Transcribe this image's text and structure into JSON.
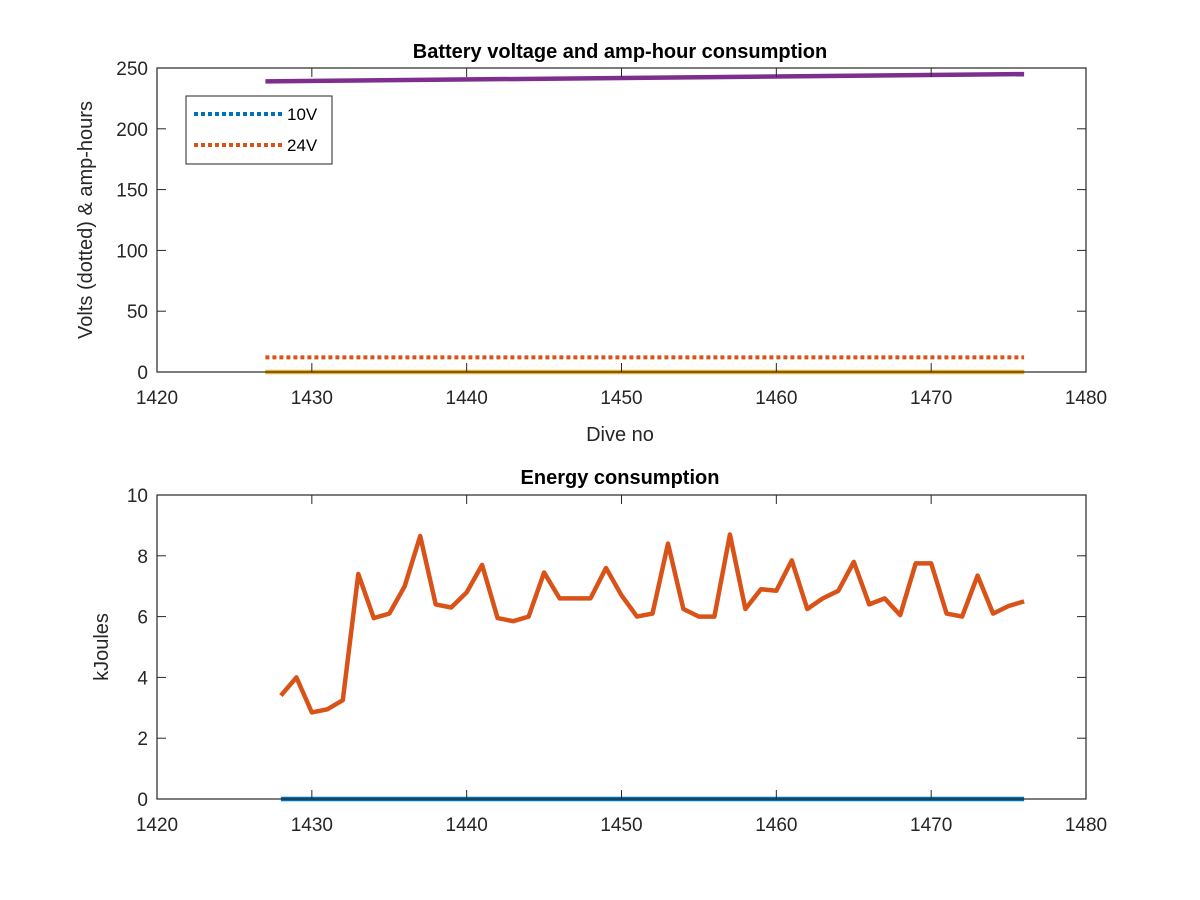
{
  "chart_data": [
    {
      "type": "line",
      "title": "Battery voltage and amp-hour consumption",
      "xlabel": "Dive no",
      "ylabel": "Volts (dotted) & amp-hours",
      "xlim": [
        1420,
        1480
      ],
      "ylim": [
        0,
        250
      ],
      "xticks": [
        "1420",
        "1430",
        "1440",
        "1450",
        "1460",
        "1470",
        "1480"
      ],
      "yticks": [
        "0",
        "50",
        "100",
        "150",
        "200",
        "250"
      ],
      "grid": false,
      "legend_placement": "top-left",
      "series": [
        {
          "name": "10V",
          "style": "dotted",
          "color": "#0072bd",
          "x": [
            1427,
            1476
          ],
          "y": [
            0,
            0
          ]
        },
        {
          "name": "24V",
          "style": "dotted",
          "color": "#d95319",
          "x": [
            1427,
            1476
          ],
          "y": [
            12,
            12
          ]
        },
        {
          "style": "solid",
          "color": "#edb120",
          "x": [
            1427,
            1476
          ],
          "y": [
            0,
            0
          ]
        },
        {
          "style": "solid",
          "color": "#7e2f8e",
          "x": [
            1427,
            1476
          ],
          "y": [
            239,
            245
          ]
        }
      ]
    },
    {
      "type": "line",
      "title": "Energy consumption",
      "xlabel": "",
      "ylabel": "kJoules",
      "xlim": [
        1420,
        1480
      ],
      "ylim": [
        0,
        10
      ],
      "xticks": [
        "1420",
        "1430",
        "1440",
        "1450",
        "1460",
        "1470",
        "1480"
      ],
      "yticks": [
        "0",
        "2",
        "4",
        "6",
        "8",
        "10"
      ],
      "grid": false,
      "series": [
        {
          "style": "solid",
          "color": "#0072bd",
          "x": [
            1428,
            1476
          ],
          "y": [
            0,
            0
          ]
        },
        {
          "style": "solid",
          "color": "#d95319",
          "x": [
            1428,
            1429,
            1430,
            1431,
            1432,
            1433,
            1434,
            1435,
            1436,
            1437,
            1438,
            1439,
            1440,
            1441,
            1442,
            1443,
            1444,
            1445,
            1446,
            1447,
            1448,
            1449,
            1450,
            1451,
            1452,
            1453,
            1454,
            1455,
            1456,
            1457,
            1458,
            1459,
            1460,
            1461,
            1462,
            1463,
            1464,
            1465,
            1466,
            1467,
            1468,
            1469,
            1470,
            1471,
            1472,
            1473,
            1474,
            1475,
            1476
          ],
          "y": [
            3.4,
            4.0,
            2.85,
            2.95,
            3.25,
            7.4,
            5.95,
            6.1,
            7.0,
            8.65,
            6.4,
            6.3,
            6.8,
            7.7,
            5.95,
            5.85,
            6.0,
            7.45,
            6.6,
            6.6,
            6.6,
            7.6,
            6.7,
            6.0,
            6.1,
            8.4,
            6.25,
            6.0,
            6.0,
            8.7,
            6.25,
            6.9,
            6.85,
            7.85,
            6.25,
            6.6,
            6.85,
            7.8,
            6.4,
            6.6,
            6.05,
            7.75,
            7.75,
            6.1,
            6.0,
            7.35,
            6.1,
            6.35,
            6.5
          ]
        }
      ]
    }
  ]
}
